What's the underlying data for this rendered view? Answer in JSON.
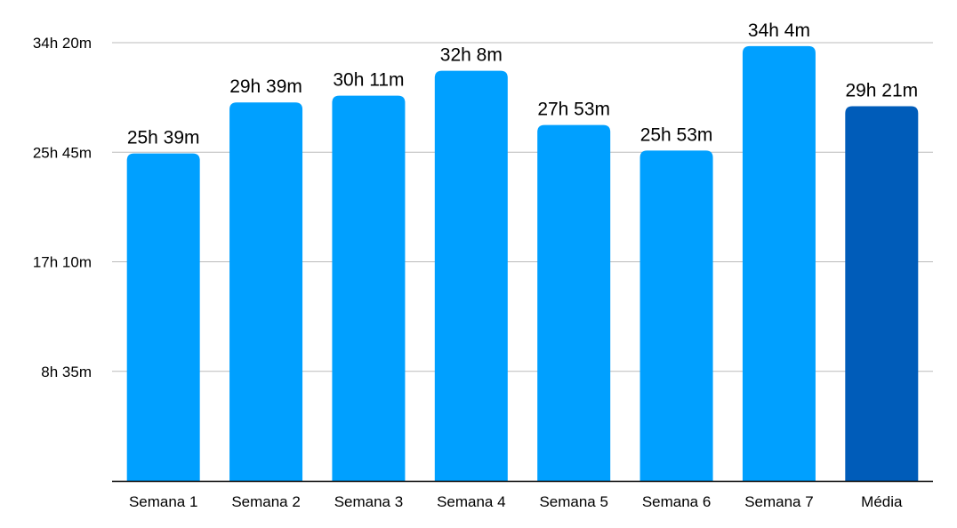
{
  "chart_data": {
    "type": "bar",
    "categories": [
      "Semana 1",
      "Semana 2",
      "Semana 3",
      "Semana 4",
      "Semana 5",
      "Semana 6",
      "Semana 7",
      "Média"
    ],
    "values_minutes": [
      1539,
      1779,
      1811,
      1928,
      1673,
      1553,
      2044,
      1761
    ],
    "data_labels": [
      "25h 39m",
      "29h 39m",
      "30h 11m",
      "32h 8m",
      "27h 53m",
      "25h 53m",
      "34h 4m",
      "29h 21m"
    ],
    "y_ticks_minutes": [
      515,
      1030,
      1545,
      2060
    ],
    "y_tick_labels": [
      "8h 35m",
      "17h 10m",
      "25h 45m",
      "34h 20m"
    ],
    "ylim_minutes": [
      0,
      2060
    ],
    "grid": true,
    "colors": {
      "bar": "#00A0FF",
      "highlight": "#005CB9",
      "grid": "#bbbbbb",
      "axis": "#000000"
    },
    "highlight_index": 7
  }
}
